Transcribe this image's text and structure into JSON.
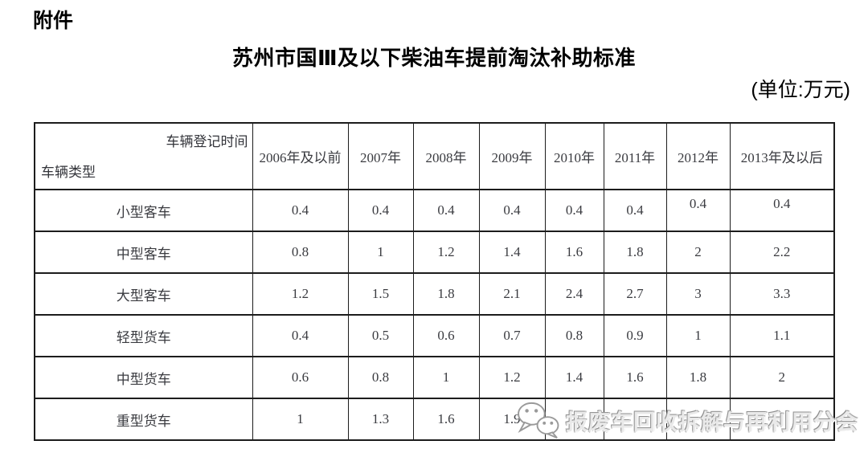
{
  "page": {
    "attachment_label": "附件",
    "title": "苏州市国Ⅲ及以下柴油车提前淘汰补助标准",
    "unit_note": "(单位:万元)"
  },
  "table": {
    "corner_top_right": "车辆登记时间",
    "corner_bottom_left": "车辆类型",
    "columns": [
      "2006年及以前",
      "2007年",
      "2008年",
      "2009年",
      "2010年",
      "2011年",
      "2012年",
      "2013年及以后"
    ],
    "rows": [
      {
        "label": "小型客车",
        "values": [
          "0.4",
          "0.4",
          "0.4",
          "0.4",
          "0.4",
          "0.4",
          "0.4",
          "0.4"
        ]
      },
      {
        "label": "中型客车",
        "values": [
          "0.8",
          "1",
          "1.2",
          "1.4",
          "1.6",
          "1.8",
          "2",
          "2.2"
        ]
      },
      {
        "label": "大型客车",
        "values": [
          "1.2",
          "1.5",
          "1.8",
          "2.1",
          "2.4",
          "2.7",
          "3",
          "3.3"
        ]
      },
      {
        "label": "轻型货车",
        "values": [
          "0.4",
          "0.5",
          "0.6",
          "0.7",
          "0.8",
          "0.9",
          "1",
          "1.1"
        ]
      },
      {
        "label": "中型货车",
        "values": [
          "0.6",
          "0.8",
          "1",
          "1.2",
          "1.4",
          "1.6",
          "1.8",
          "2"
        ]
      },
      {
        "label": "重型货车",
        "values": [
          "1",
          "1.3",
          "1.6",
          "1.9",
          "",
          "",
          "",
          ""
        ]
      }
    ]
  },
  "watermark": {
    "icon": "wechat-icon",
    "text": "报废车回收拆解与再利用分会",
    "color": "#9a9a9a"
  }
}
